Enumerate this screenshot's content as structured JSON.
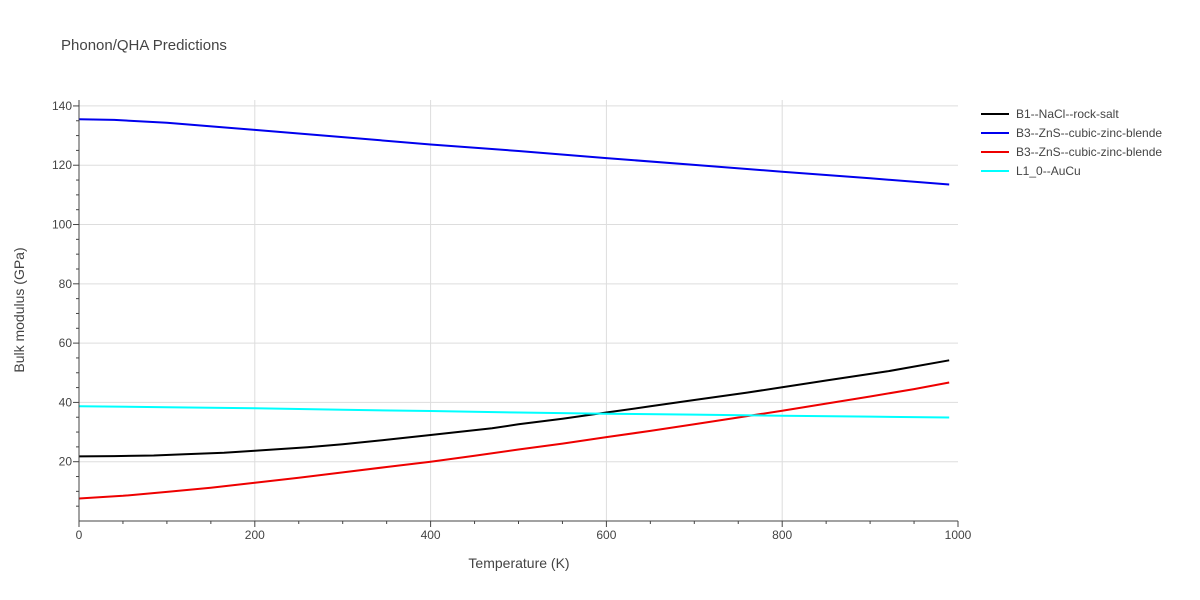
{
  "chart_data": {
    "type": "line",
    "title": "Phonon/QHA Predictions",
    "xlabel": "Temperature (K)",
    "ylabel": "Bulk modulus (GPa)",
    "xlim": [
      0,
      1000
    ],
    "ylim": [
      0,
      142
    ],
    "xticks": [
      0,
      200,
      400,
      600,
      800,
      1000
    ],
    "yticks": [
      20,
      40,
      60,
      80,
      100,
      120,
      140
    ],
    "grid": true,
    "legend_position": "right",
    "series": [
      {
        "name": "B1--NaCl--rock-salt",
        "color": "#000000",
        "x": [
          0,
          40,
          85,
          120,
          165,
          200,
          260,
          300,
          350,
          400,
          470,
          500,
          550,
          600,
          650,
          700,
          760,
          800,
          850,
          920,
          990
        ],
        "y": [
          21.8,
          21.9,
          22.1,
          22.5,
          23.0,
          23.7,
          24.9,
          25.9,
          27.4,
          29.0,
          31.3,
          32.6,
          34.5,
          36.6,
          38.7,
          40.8,
          43.3,
          45.1,
          47.4,
          50.5,
          54.2
        ]
      },
      {
        "name": "B3--ZnS--cubic-zinc-blende",
        "color": "#0000ee",
        "x": [
          0,
          40,
          100,
          200,
          300,
          400,
          500,
          600,
          700,
          800,
          900,
          990
        ],
        "y": [
          135.5,
          135.3,
          134.3,
          131.9,
          129.5,
          127.0,
          124.8,
          122.4,
          120.1,
          117.8,
          115.6,
          113.5
        ]
      },
      {
        "name": "B3--ZnS--cubic-zinc-blende",
        "color": "#ee0000",
        "x": [
          0,
          50,
          100,
          150,
          200,
          250,
          300,
          350,
          400,
          450,
          500,
          550,
          600,
          650,
          700,
          750,
          800,
          850,
          900,
          950,
          990
        ],
        "y": [
          7.6,
          8.5,
          9.8,
          11.2,
          12.9,
          14.6,
          16.4,
          18.2,
          20.0,
          22.0,
          24.1,
          26.1,
          28.3,
          30.4,
          32.6,
          34.9,
          37.2,
          39.6,
          42.0,
          44.5,
          46.7
        ]
      },
      {
        "name": "L1_0--AuCu",
        "color": "#00ffff",
        "x": [
          0,
          100,
          200,
          300,
          400,
          500,
          600,
          700,
          800,
          900,
          990
        ],
        "y": [
          38.7,
          38.4,
          38.0,
          37.5,
          37.1,
          36.6,
          36.2,
          35.9,
          35.5,
          35.2,
          34.9
        ]
      }
    ]
  }
}
